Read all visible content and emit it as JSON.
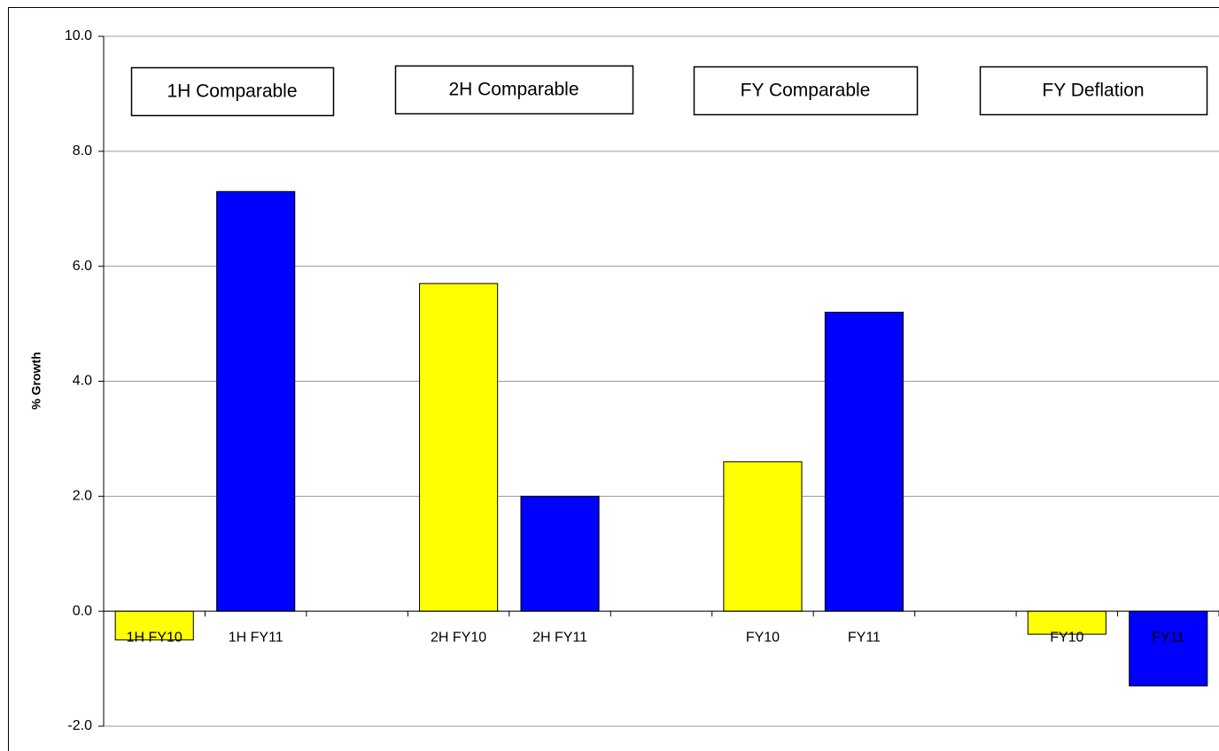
{
  "chart_data": {
    "type": "bar",
    "y_label": "% Growth",
    "categories": [
      "1H FY10",
      "1H FY11",
      null,
      "2H FY10",
      "2H FY11",
      null,
      "FY10",
      "FY11",
      null,
      "FY10",
      "FY11"
    ],
    "values": [
      -0.5,
      7.3,
      null,
      5.7,
      2.0,
      null,
      2.6,
      5.2,
      null,
      -0.4,
      -1.3
    ],
    "colors": [
      "#ffff00",
      "#0000ff",
      null,
      "#ffff00",
      "#0000ff",
      null,
      "#ffff00",
      "#0000ff",
      null,
      "#ffff00",
      "#0000ff"
    ],
    "annotations": [
      "1H Comparable",
      "2H Comparable",
      "FY Comparable",
      "FY Deflation"
    ],
    "ylim": [
      -2,
      10
    ],
    "yticks": [
      {
        "value": -2,
        "label": "-2.0"
      },
      {
        "value": 0,
        "label": "0.0"
      },
      {
        "value": 2,
        "label": "2.0"
      },
      {
        "value": 4,
        "label": "4.0"
      },
      {
        "value": 6,
        "label": "6.0"
      },
      {
        "value": 8,
        "label": "8.0"
      },
      {
        "value": 10,
        "label": "10.0"
      }
    ],
    "grid": true
  }
}
